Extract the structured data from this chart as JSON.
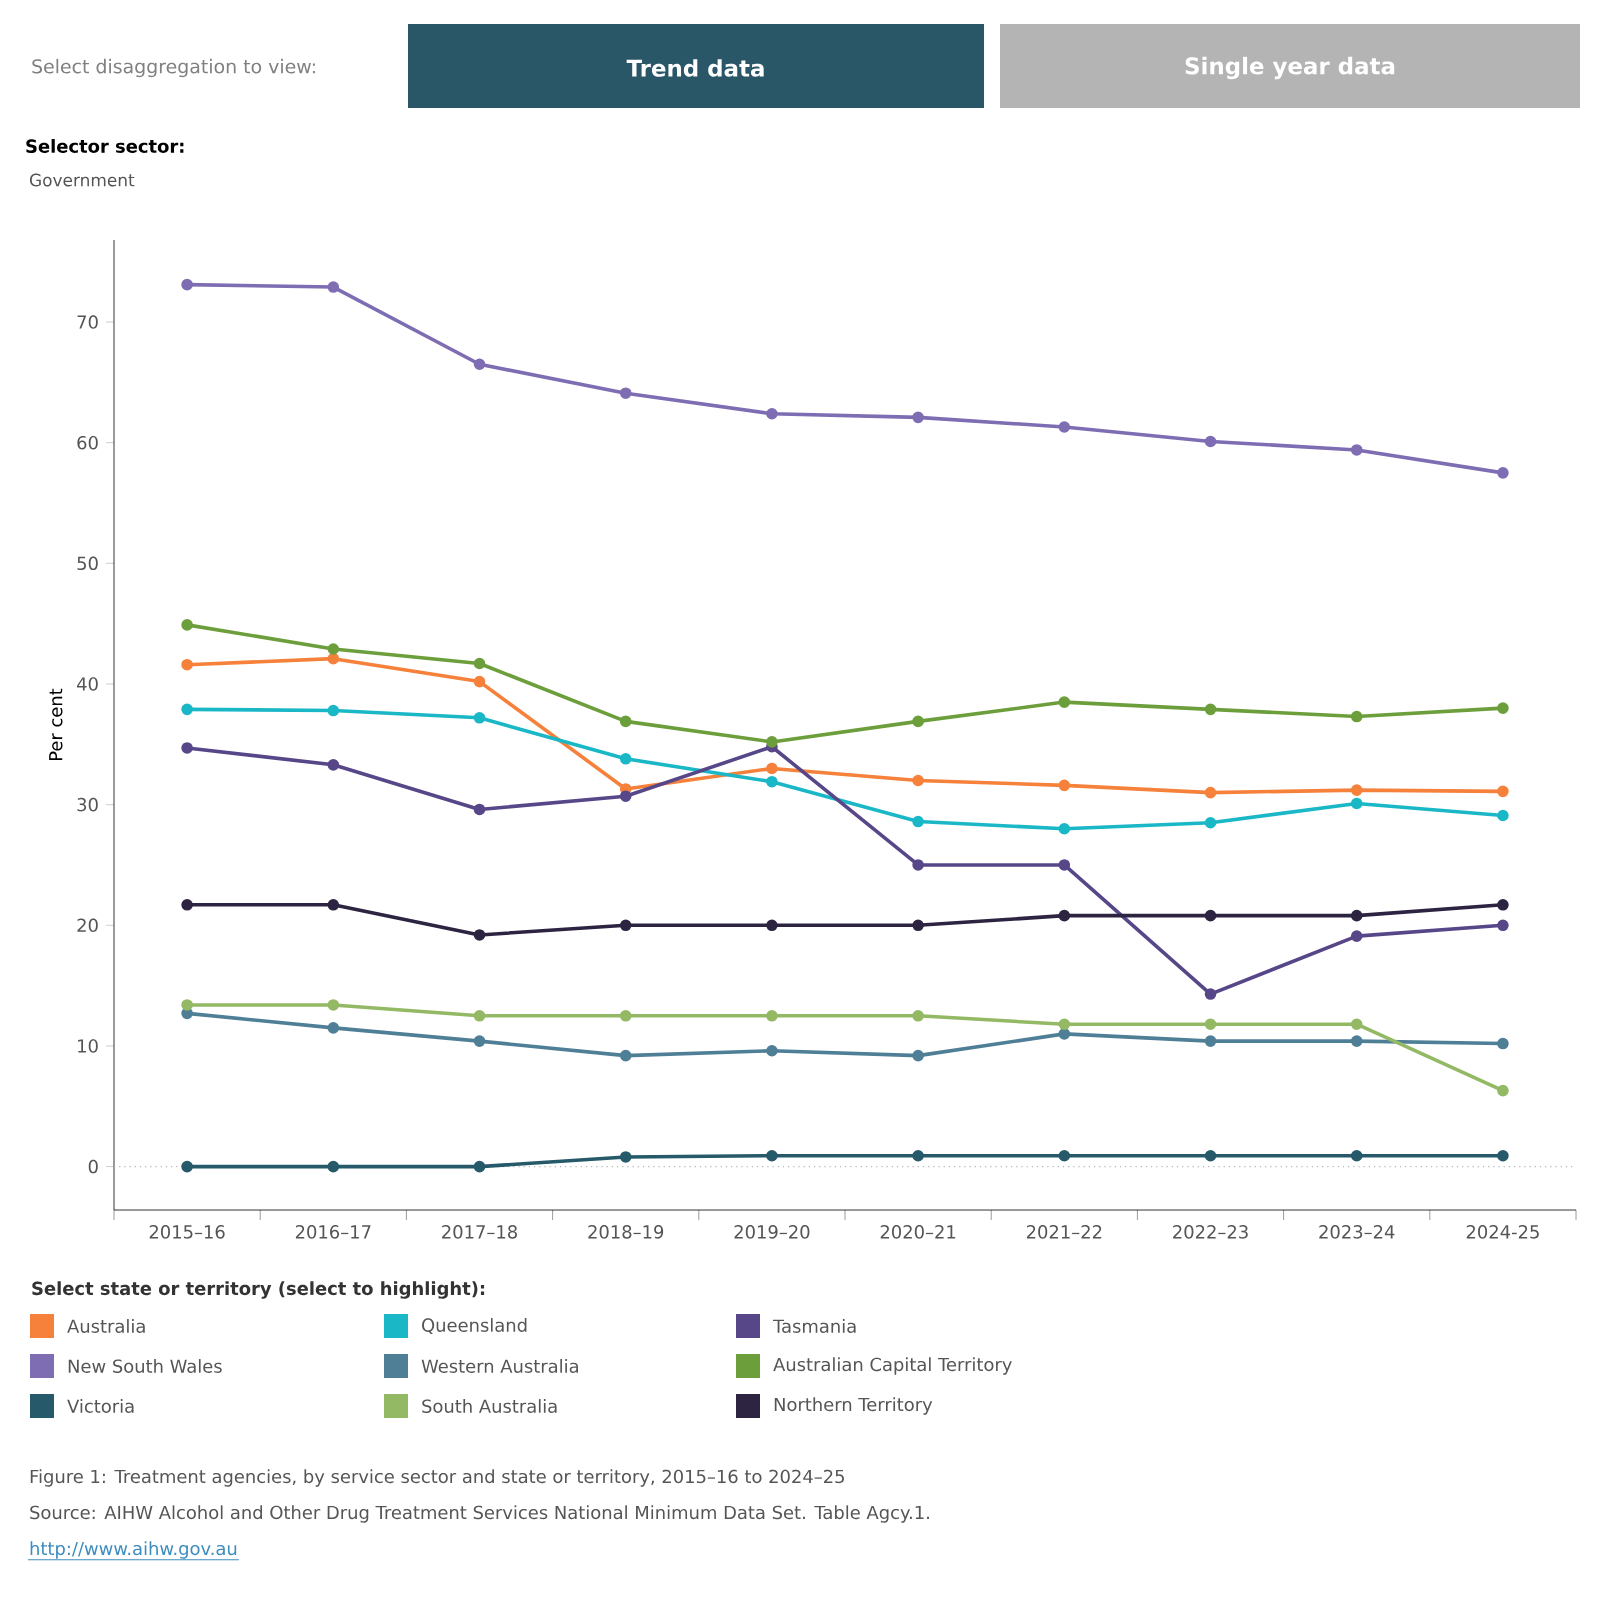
{
  "chart_data": {
    "type": "line",
    "ylabel": "Per cent",
    "legend_title": "Select state or territory (select to highlight):",
    "categories": [
      "2015–16",
      "2016–17",
      "2017–18",
      "2018–19",
      "2019–20",
      "2020–21",
      "2021–22",
      "2022–23",
      "2023–24",
      "2024-25"
    ],
    "series": [
      {
        "name": "Australia",
        "color": "#f5813b",
        "values": [
          41.6,
          42.1,
          40.2,
          31.3,
          33.0,
          32.0,
          31.6,
          31.0,
          31.2,
          31.1
        ]
      },
      {
        "name": "New South Wales",
        "color": "#7e6db3",
        "values": [
          73.1,
          72.9,
          66.5,
          64.1,
          62.4,
          62.1,
          61.3,
          60.1,
          59.4,
          57.5
        ]
      },
      {
        "name": "Victoria",
        "color": "#265a6a",
        "values": [
          0.0,
          0.0,
          0.0,
          0.8,
          0.9,
          0.9,
          0.9,
          0.9,
          0.9,
          0.9
        ]
      },
      {
        "name": "Queensland",
        "color": "#1ab8c7",
        "values": [
          37.9,
          37.8,
          37.2,
          33.8,
          31.9,
          28.6,
          28.0,
          28.5,
          30.1,
          29.1
        ]
      },
      {
        "name": "Western Australia",
        "color": "#4f7f96",
        "values": [
          12.7,
          11.5,
          10.4,
          9.2,
          9.6,
          9.2,
          11.0,
          10.4,
          10.4,
          10.2
        ]
      },
      {
        "name": "South Australia",
        "color": "#94b964",
        "values": [
          13.4,
          13.4,
          12.5,
          12.5,
          12.5,
          12.5,
          11.8,
          11.8,
          11.8,
          6.3
        ]
      },
      {
        "name": "Tasmania",
        "color": "#574789",
        "values": [
          34.7,
          33.3,
          29.6,
          30.7,
          34.8,
          25.0,
          25.0,
          14.3,
          19.1,
          20.0
        ]
      },
      {
        "name": "Australian Capital Territory",
        "color": "#6c9f3b",
        "values": [
          44.9,
          42.9,
          41.7,
          36.9,
          35.2,
          36.9,
          38.5,
          37.9,
          37.3,
          38.0
        ]
      },
      {
        "name": "Northern Territory",
        "color": "#2d2441",
        "values": [
          21.7,
          21.7,
          19.2,
          20.0,
          20.0,
          20.0,
          20.8,
          20.8,
          20.8,
          21.7
        ]
      }
    ],
    "ylim": [
      -3.6,
      76.8
    ],
    "yticks": [
      0,
      10,
      20,
      30,
      40,
      50,
      60,
      70
    ],
    "ref_lines": [
      {
        "axis": "y",
        "value": 0,
        "color": "#b4b4b4",
        "line_style": "dotted"
      }
    ],
    "marker": "circle",
    "line_style": "solid",
    "legend": "bottom",
    "annotations": [
      "Select disaggregation to view:",
      "Trend data",
      "Single year data",
      "Selector sector:",
      "Government",
      "Figure  1: Treatment agencies, by service sector and state or territory, 2015–16 to 2024–25",
      "Source: AIHW Alcohol and Other Drug Treatment Services National Minimum Data Set. Table Agcy.1.",
      "http://www.aihw.gov.au"
    ]
  }
}
